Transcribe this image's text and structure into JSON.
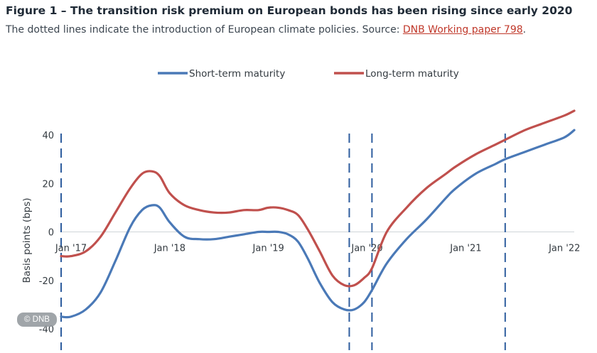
{
  "figure": {
    "title": "Figure 1 – The transition risk premium on European bonds has been rising since early 2020",
    "caption": "The dotted lines indicate the introduction of European climate policies.  Source:",
    "source_link": "DNB Working paper 798",
    "caption_end": "."
  },
  "badge": "© DNB",
  "colors": {
    "short": "#4a79b7",
    "long": "#c0504d",
    "policy_line": "#2e5d9e",
    "axis": "#2e5d9e"
  },
  "chart_data": {
    "type": "line",
    "title": "",
    "xlabel": "",
    "ylabel": "Basis points (bps)",
    "ylim": [
      -40,
      40
    ],
    "xlim": [
      2017.0,
      2022.2
    ],
    "yticks": [
      -40,
      -20,
      0,
      20,
      40
    ],
    "ytick_labels": [
      "-40",
      "-20",
      "0",
      "20",
      "40"
    ],
    "xticks": [
      2017,
      2018,
      2019,
      2020,
      2021,
      2022
    ],
    "xtick_labels": [
      "Jan '17",
      "Jan '18",
      "Jan '19",
      "Jan '20",
      "Jan '21",
      "Jan '22"
    ],
    "legend_position": "top",
    "policy_lines": [
      2017.0,
      2019.92,
      2020.15,
      2021.5
    ],
    "series": [
      {
        "name": "Short-term maturity",
        "color": "#4a79b7",
        "x": [
          2017.0,
          2017.1,
          2017.25,
          2017.4,
          2017.55,
          2017.7,
          2017.82,
          2017.92,
          2018.0,
          2018.1,
          2018.25,
          2018.4,
          2018.55,
          2018.7,
          2018.85,
          2019.0,
          2019.1,
          2019.2,
          2019.3,
          2019.4,
          2019.5,
          2019.62,
          2019.75,
          2019.87,
          2019.97,
          2020.07,
          2020.15,
          2020.3,
          2020.5,
          2020.7,
          2020.9,
          2021.0,
          2021.2,
          2021.4,
          2021.5,
          2021.7,
          2021.9,
          2022.1,
          2022.2
        ],
        "y": [
          -35,
          -35,
          -32,
          -25,
          -12,
          2,
          9,
          11,
          10,
          4,
          -2,
          -3,
          -3,
          -2,
          -1,
          0,
          0,
          0,
          -1,
          -4,
          -11,
          -21,
          -29,
          -32,
          -32,
          -29,
          -24,
          -13,
          -3,
          5,
          14,
          18,
          24,
          28,
          30,
          33,
          36,
          39,
          42
        ]
      },
      {
        "name": "Long-term maturity",
        "color": "#c0504d",
        "x": [
          2017.0,
          2017.1,
          2017.25,
          2017.4,
          2017.55,
          2017.7,
          2017.82,
          2017.92,
          2018.0,
          2018.1,
          2018.25,
          2018.4,
          2018.55,
          2018.7,
          2018.85,
          2019.0,
          2019.1,
          2019.2,
          2019.3,
          2019.4,
          2019.5,
          2019.62,
          2019.75,
          2019.87,
          2019.97,
          2020.07,
          2020.15,
          2020.3,
          2020.5,
          2020.7,
          2020.9,
          2021.0,
          2021.2,
          2021.4,
          2021.5,
          2021.7,
          2021.9,
          2022.1,
          2022.2
        ],
        "y": [
          -10,
          -10,
          -8,
          -2,
          8,
          18,
          24,
          25,
          23,
          16,
          11,
          9,
          8,
          8,
          9,
          9,
          10,
          10,
          9,
          7,
          1,
          -8,
          -18,
          -22,
          -22,
          -19,
          -15,
          0,
          10,
          18,
          24,
          27,
          32,
          36,
          38,
          42,
          45,
          48,
          50
        ]
      }
    ]
  }
}
